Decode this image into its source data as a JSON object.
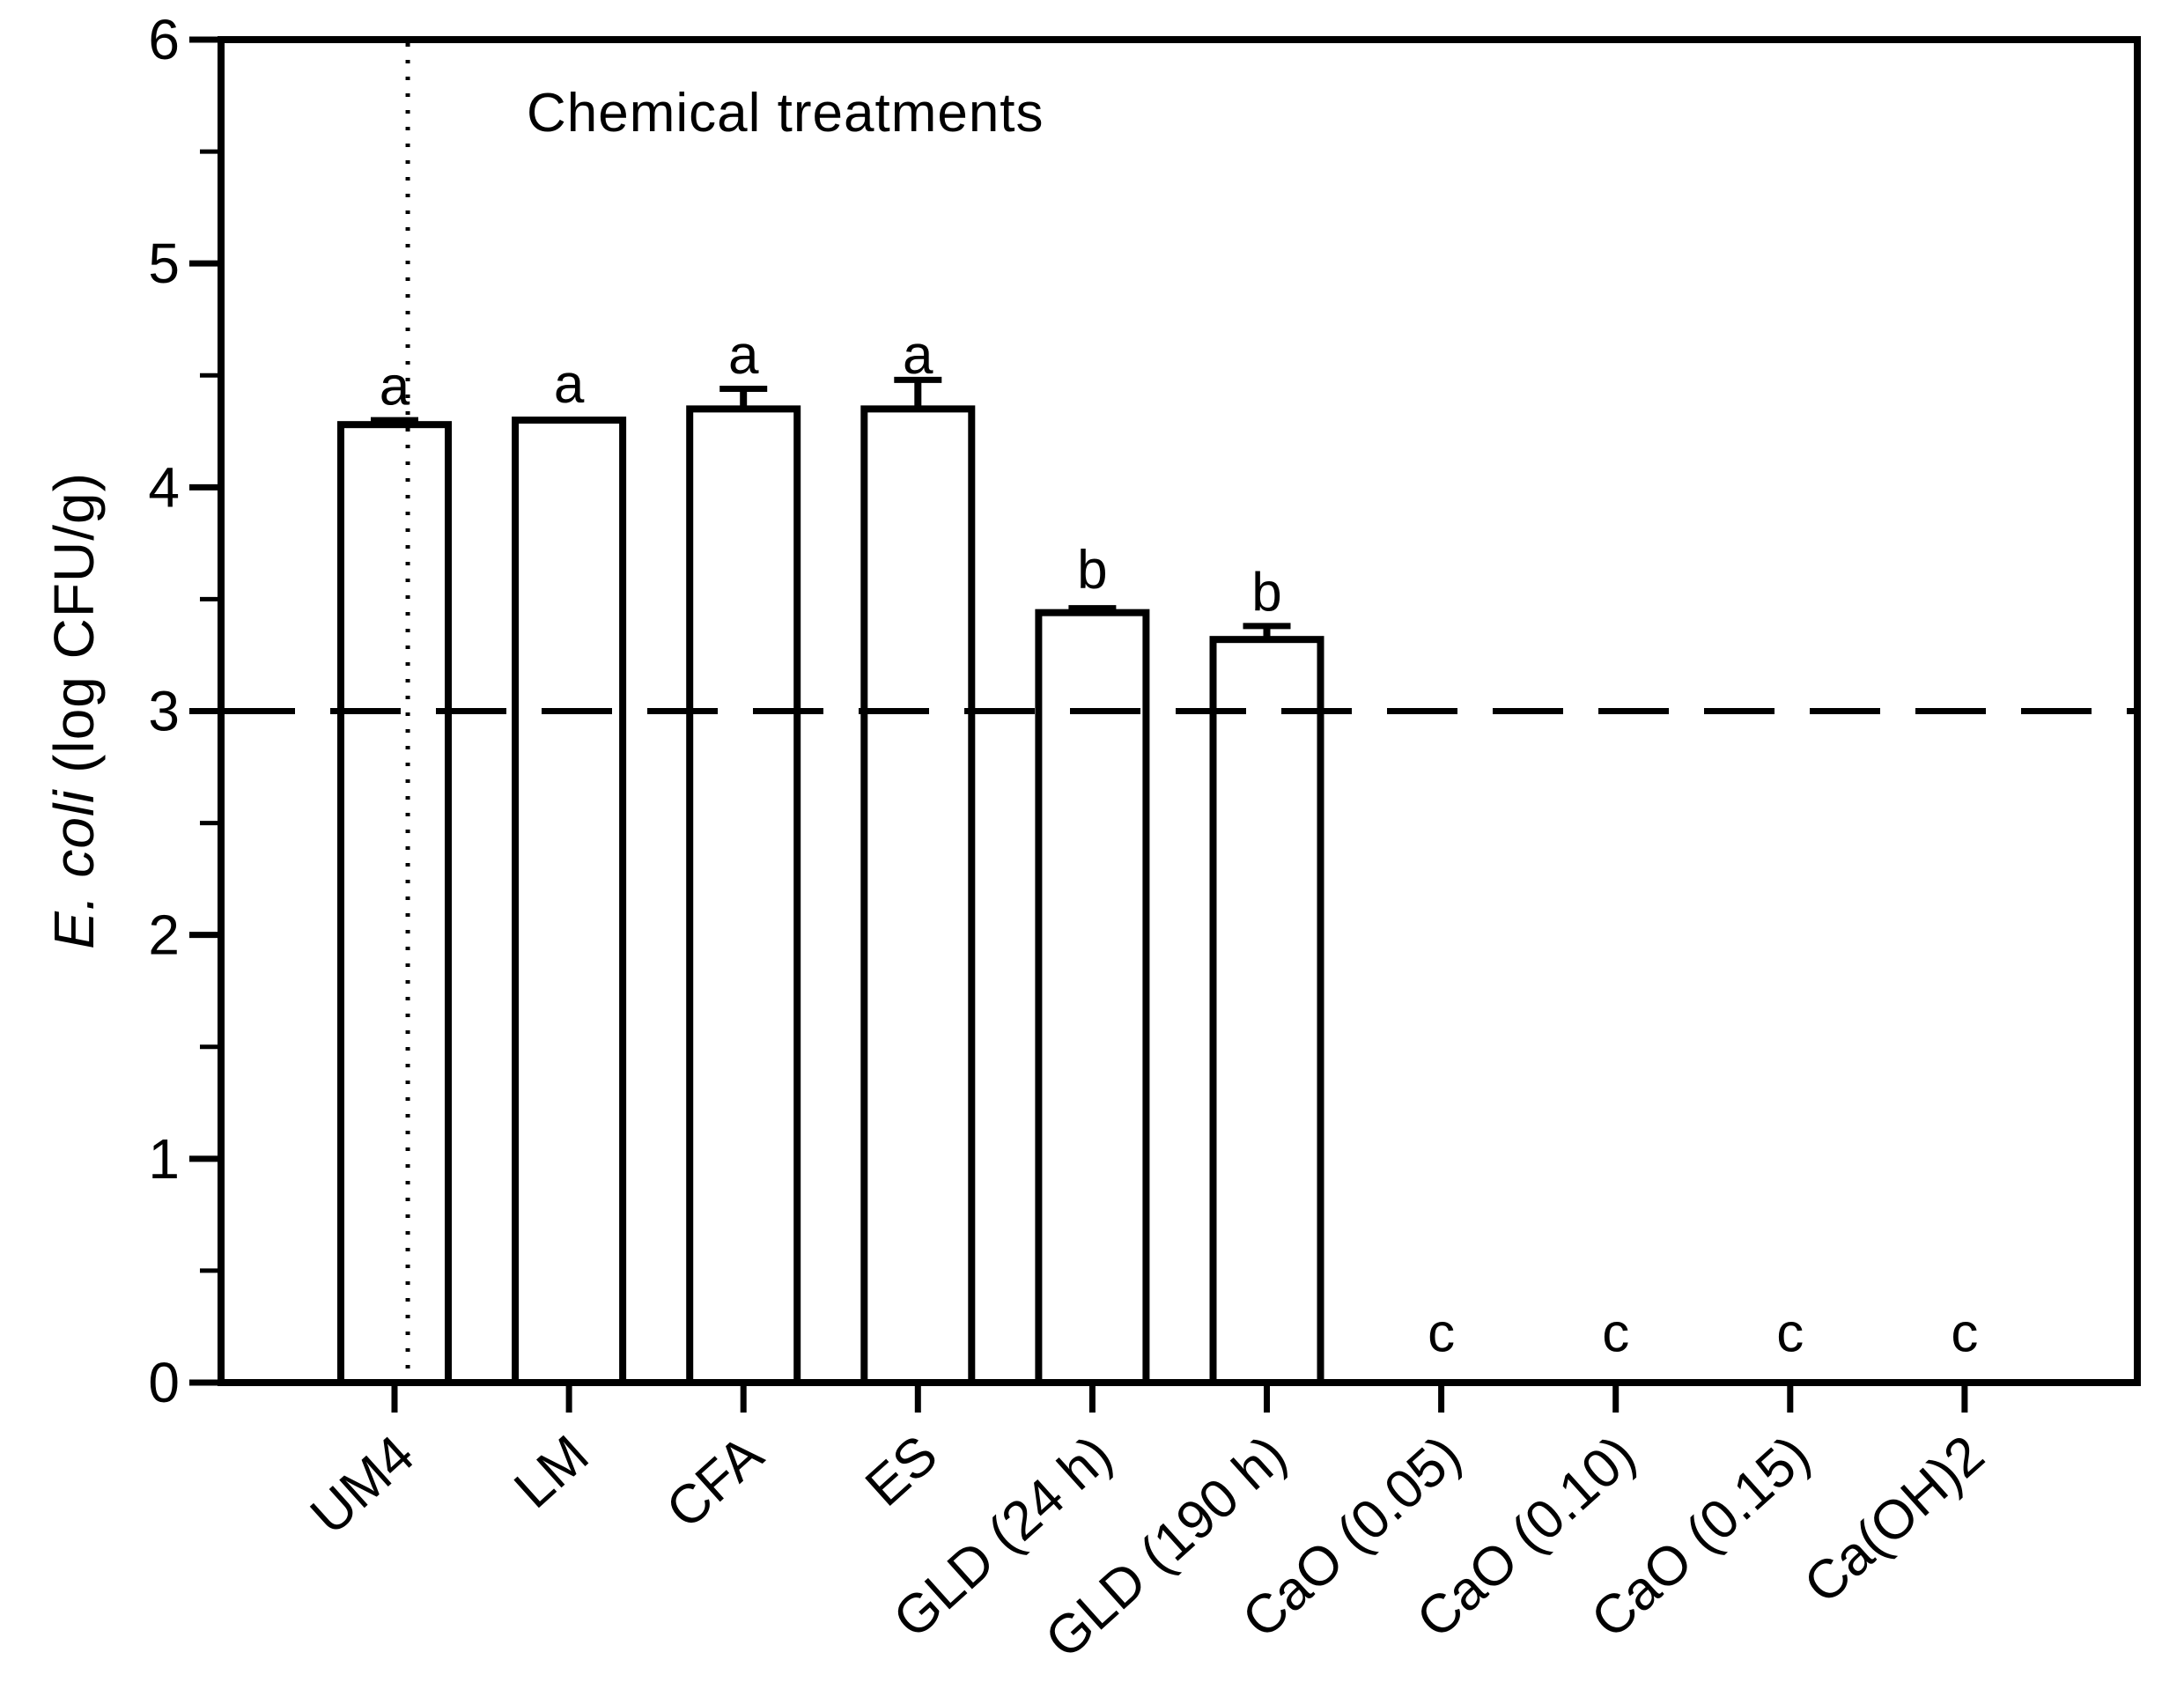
{
  "chart_data": {
    "type": "bar",
    "annotation": "Chemical treatments",
    "ylabel_italic": "E. coli",
    "ylabel_rest": " (log CFU/g)",
    "categories": [
      "UM4",
      "LM",
      "CFA",
      "ES",
      "GLD (24 h)",
      "GLD (190 h)",
      "CaO (0.05)",
      "CaO (0.10)",
      "CaO (0.15)",
      "Ca(OH)2"
    ],
    "values": [
      4.28,
      4.3,
      4.35,
      4.35,
      3.44,
      3.32,
      0,
      0,
      0,
      0
    ],
    "errors": [
      0.02,
      0,
      0.09,
      0.13,
      0.02,
      0.06,
      0,
      0,
      0,
      0
    ],
    "sig_letters": [
      "a",
      "a",
      "a",
      "a",
      "b",
      "b",
      "c",
      "c",
      "c",
      "c"
    ],
    "sig_letter_y": [
      4.45,
      4.46,
      4.59,
      4.59,
      3.63,
      3.53,
      0.22,
      0.22,
      0.22,
      0.22
    ],
    "ylim": [
      0,
      6
    ],
    "yticks": [
      0,
      1,
      2,
      3,
      4,
      5,
      6
    ],
    "minor_tick_step": 0.5,
    "reference_line_y": 3,
    "separator_after_index": 0,
    "bar_fill": "#ffffff",
    "line_color": "#000000",
    "grid": "off",
    "legend": "none"
  }
}
